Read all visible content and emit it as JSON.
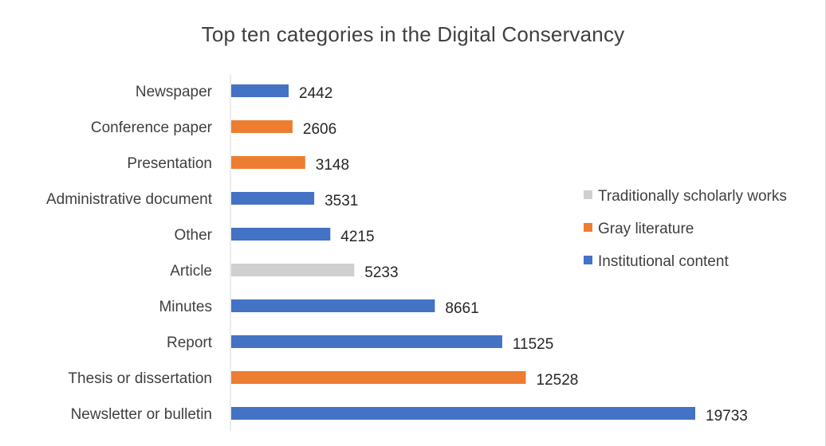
{
  "chart_data": {
    "type": "bar",
    "orientation": "horizontal",
    "title": "Top ten categories in the Digital Conservancy",
    "categories": [
      "Newspaper",
      "Conference paper",
      "Presentation",
      "Administrative document",
      "Other",
      "Article",
      "Minutes",
      "Report",
      "Thesis or dissertation",
      "Newsletter or bulletin"
    ],
    "values": [
      2442,
      2606,
      3148,
      3531,
      4215,
      5233,
      8661,
      11525,
      12528,
      19733
    ],
    "groups": [
      "Institutional content",
      "Gray literature",
      "Gray literature",
      "Institutional content",
      "Institutional content",
      "Traditionally scholarly works",
      "Institutional content",
      "Institutional content",
      "Gray literature",
      "Institutional content"
    ],
    "legend": [
      {
        "name": "Traditionally scholarly works",
        "color": "#d0cfd0"
      },
      {
        "name": "Gray literature",
        "color": "#ed7d31"
      },
      {
        "name": "Institutional content",
        "color": "#4472c4"
      }
    ],
    "legend_position": "right",
    "xlabel": "",
    "ylabel": "",
    "grid": false,
    "data_labels": true
  }
}
